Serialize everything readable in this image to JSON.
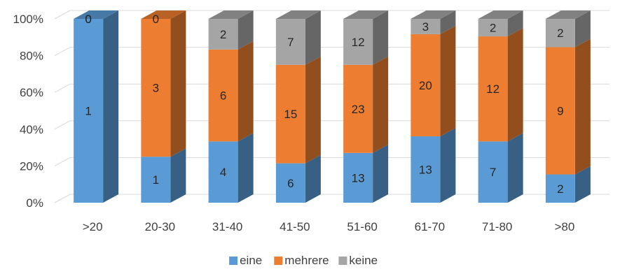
{
  "chart_data": {
    "type": "bar",
    "stacked": "percent",
    "three_d": true,
    "categories": [
      ">20",
      "20-30",
      "31-40",
      "41-50",
      "51-60",
      "61-70",
      "71-80",
      ">80"
    ],
    "series": [
      {
        "name": "eine",
        "color": "#5B9BD5",
        "values": [
          1,
          1,
          4,
          6,
          13,
          13,
          7,
          2
        ]
      },
      {
        "name": "mehrere",
        "color": "#ED7D31",
        "values": [
          0,
          3,
          6,
          15,
          23,
          20,
          12,
          9
        ]
      },
      {
        "name": "keine",
        "color": "#A5A5A5",
        "values": [
          0,
          0,
          2,
          7,
          12,
          3,
          2,
          2
        ]
      }
    ],
    "y_ticks": [
      "0%",
      "20%",
      "40%",
      "60%",
      "80%",
      "100%"
    ],
    "ylim": [
      0,
      100
    ],
    "grid": true,
    "legend_position": "bottom"
  }
}
